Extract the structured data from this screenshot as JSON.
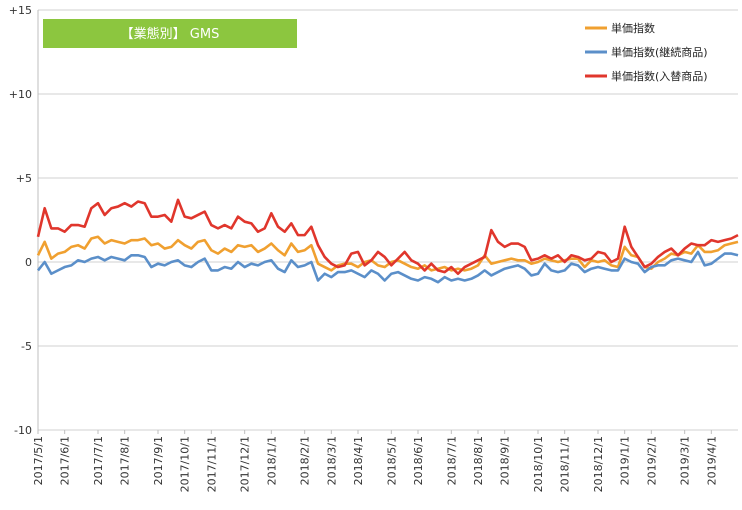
{
  "chart_data": {
    "type": "line",
    "title": "【業態別】 GMS",
    "title_badge_color": "#8cc63f",
    "ylim": [
      -10,
      15
    ],
    "yticks": [
      {
        "v": 15,
        "label": "+15"
      },
      {
        "v": 10,
        "label": "+10"
      },
      {
        "v": 5,
        "label": "+5"
      },
      {
        "v": 0,
        "label": "0"
      },
      {
        "v": -5,
        "label": "-5"
      },
      {
        "v": -10,
        "label": "-10"
      }
    ],
    "x_count": 106,
    "xticks": [
      {
        "i": 0,
        "label": "2017/5/1"
      },
      {
        "i": 4,
        "label": "2017/6/1"
      },
      {
        "i": 9,
        "label": "2017/7/1"
      },
      {
        "i": 13,
        "label": "2017/8/1"
      },
      {
        "i": 18,
        "label": "2017/9/1"
      },
      {
        "i": 22,
        "label": "2017/10/1"
      },
      {
        "i": 26,
        "label": "2017/11/1"
      },
      {
        "i": 31,
        "label": "2017/12/1"
      },
      {
        "i": 35,
        "label": "2018/1/1"
      },
      {
        "i": 40,
        "label": "2018/2/1"
      },
      {
        "i": 44,
        "label": "2018/3/1"
      },
      {
        "i": 48,
        "label": "2018/4/1"
      },
      {
        "i": 53,
        "label": "2018/5/1"
      },
      {
        "i": 57,
        "label": "2018/6/1"
      },
      {
        "i": 62,
        "label": "2018/7/1"
      },
      {
        "i": 66,
        "label": "2018/8/1"
      },
      {
        "i": 70,
        "label": "2018/9/1"
      },
      {
        "i": 75,
        "label": "2018/10/1"
      },
      {
        "i": 79,
        "label": "2018/11/1"
      },
      {
        "i": 84,
        "label": "2018/12/1"
      },
      {
        "i": 88,
        "label": "2019/1/1"
      },
      {
        "i": 92,
        "label": "2019/2/1"
      },
      {
        "i": 97,
        "label": "2019/3/1"
      },
      {
        "i": 101,
        "label": "2019/4/1"
      }
    ],
    "legend_position": "top-right",
    "series": [
      {
        "name": "単価指数",
        "color": "#f0a030",
        "values": [
          0.4,
          1.2,
          0.2,
          0.5,
          0.6,
          0.9,
          1.0,
          0.8,
          1.4,
          1.5,
          1.1,
          1.3,
          1.2,
          1.1,
          1.3,
          1.3,
          1.4,
          1.0,
          1.1,
          0.8,
          0.9,
          1.3,
          1.0,
          0.8,
          1.2,
          1.3,
          0.7,
          0.5,
          0.8,
          0.6,
          1.0,
          0.9,
          1.0,
          0.6,
          0.8,
          1.1,
          0.7,
          0.4,
          1.1,
          0.6,
          0.7,
          1.0,
          -0.1,
          -0.3,
          -0.5,
          -0.2,
          -0.1,
          -0.1,
          -0.3,
          0.0,
          0.1,
          -0.2,
          -0.3,
          0.0,
          0.1,
          -0.1,
          -0.3,
          -0.4,
          -0.2,
          -0.5,
          -0.4,
          -0.3,
          -0.5,
          -0.4,
          -0.5,
          -0.4,
          -0.2,
          0.4,
          -0.1,
          0.0,
          0.1,
          0.2,
          0.1,
          0.1,
          -0.1,
          0.0,
          0.2,
          0.1,
          0.0,
          0.1,
          0.2,
          0.2,
          -0.3,
          0.1,
          0.0,
          0.1,
          -0.2,
          -0.3,
          0.9,
          0.4,
          0.3,
          -0.3,
          -0.4,
          0.0,
          0.2,
          0.5,
          0.4,
          0.6,
          0.5,
          1.0,
          0.6,
          0.6,
          0.7,
          1.0,
          1.1,
          1.2
        ]
      },
      {
        "name": "単価指数(継続商品)",
        "color": "#5b8fc9",
        "values": [
          -0.5,
          0.0,
          -0.7,
          -0.5,
          -0.3,
          -0.2,
          0.1,
          0.0,
          0.2,
          0.3,
          0.1,
          0.3,
          0.2,
          0.1,
          0.4,
          0.4,
          0.3,
          -0.3,
          -0.1,
          -0.2,
          0.0,
          0.1,
          -0.2,
          -0.3,
          0.0,
          0.2,
          -0.5,
          -0.5,
          -0.3,
          -0.4,
          0.0,
          -0.3,
          -0.1,
          -0.2,
          0.0,
          0.1,
          -0.4,
          -0.6,
          0.1,
          -0.3,
          -0.2,
          0.0,
          -1.1,
          -0.7,
          -0.9,
          -0.6,
          -0.6,
          -0.5,
          -0.7,
          -0.9,
          -0.5,
          -0.7,
          -1.1,
          -0.7,
          -0.6,
          -0.8,
          -1.0,
          -1.1,
          -0.9,
          -1.0,
          -1.2,
          -0.9,
          -1.1,
          -1.0,
          -1.1,
          -1.0,
          -0.8,
          -0.5,
          -0.8,
          -0.6,
          -0.4,
          -0.3,
          -0.2,
          -0.4,
          -0.8,
          -0.7,
          -0.1,
          -0.5,
          -0.6,
          -0.5,
          -0.1,
          -0.2,
          -0.6,
          -0.4,
          -0.3,
          -0.4,
          -0.5,
          -0.5,
          0.2,
          0.0,
          -0.1,
          -0.6,
          -0.3,
          -0.2,
          -0.2,
          0.1,
          0.2,
          0.1,
          0.0,
          0.6,
          -0.2,
          -0.1,
          0.2,
          0.5,
          0.5,
          0.4
        ]
      },
      {
        "name": "単価指数(入替商品)",
        "color": "#e0362c",
        "values": [
          1.5,
          3.2,
          2.0,
          2.0,
          1.8,
          2.2,
          2.2,
          2.1,
          3.2,
          3.5,
          2.8,
          3.2,
          3.3,
          3.5,
          3.3,
          3.6,
          3.5,
          2.7,
          2.7,
          2.8,
          2.4,
          3.7,
          2.7,
          2.6,
          2.8,
          3.0,
          2.2,
          2.0,
          2.2,
          2.0,
          2.7,
          2.4,
          2.3,
          1.8,
          2.0,
          2.9,
          2.1,
          1.8,
          2.3,
          1.6,
          1.6,
          2.1,
          1.0,
          0.3,
          -0.1,
          -0.3,
          -0.2,
          0.5,
          0.6,
          -0.2,
          0.1,
          0.6,
          0.3,
          -0.2,
          0.2,
          0.6,
          0.1,
          -0.1,
          -0.5,
          -0.1,
          -0.5,
          -0.6,
          -0.3,
          -0.7,
          -0.3,
          -0.1,
          0.1,
          0.3,
          1.9,
          1.2,
          0.9,
          1.1,
          1.1,
          0.9,
          0.1,
          0.2,
          0.4,
          0.2,
          0.4,
          0.0,
          0.4,
          0.3,
          0.1,
          0.2,
          0.6,
          0.5,
          0.0,
          0.2,
          2.1,
          0.9,
          0.3,
          -0.3,
          -0.1,
          0.3,
          0.6,
          0.8,
          0.4,
          0.8,
          1.1,
          1.0,
          1.0,
          1.3,
          1.2,
          1.3,
          1.4,
          1.6
        ]
      }
    ]
  }
}
